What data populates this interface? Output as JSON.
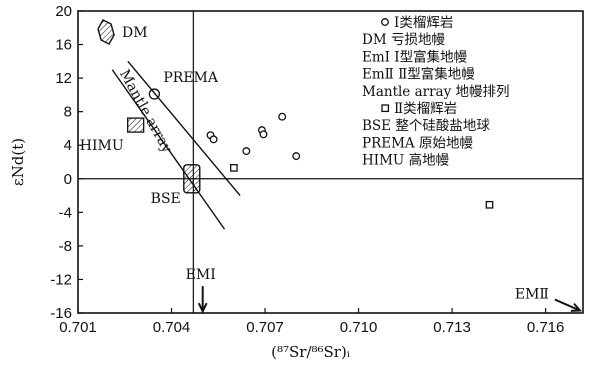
{
  "chart_data": {
    "type": "scatter",
    "xlabel": "(⁸⁷Sr/⁸⁶Sr)ᵢ",
    "ylabel": "εNd(t)",
    "xlim": [
      0.701,
      0.7172
    ],
    "ylim": [
      -16,
      20
    ],
    "x_ticks": [
      0.701,
      0.704,
      0.707,
      0.71,
      0.713,
      0.716
    ],
    "x_tick_labels": [
      "0.701",
      "0.704",
      "0.707",
      "0.710",
      "0.713",
      "0.716"
    ],
    "y_ticks": [
      -16,
      -12,
      -8,
      -4,
      0,
      4,
      8,
      12,
      16,
      20
    ],
    "y_tick_labels": [
      "-16",
      "-12",
      "-8",
      "-4",
      "0",
      "4",
      "8",
      "12",
      "16",
      "20"
    ],
    "reference_lines": {
      "x": 0.7047,
      "y": 0
    },
    "series": [
      {
        "name": "Ⅰ类榴辉岩",
        "marker": "circle",
        "points": [
          [
            0.70525,
            5.2
          ],
          [
            0.70535,
            4.7
          ],
          [
            0.7064,
            3.3
          ],
          [
            0.7069,
            5.8
          ],
          [
            0.70695,
            5.3
          ],
          [
            0.70755,
            7.4
          ],
          [
            0.708,
            2.7
          ]
        ]
      },
      {
        "name": "Ⅱ类榴辉岩",
        "marker": "square",
        "points": [
          [
            0.706,
            1.3
          ],
          [
            0.7142,
            -3.1
          ]
        ]
      }
    ],
    "reservoirs": [
      {
        "label": "DM",
        "shape": "hexagon",
        "x": 0.7019,
        "y": 17.5
      },
      {
        "label": "PREMA",
        "shape": "circle",
        "x": 0.70345,
        "y": 10.1
      },
      {
        "label": "HIMU",
        "shape": "square",
        "x": 0.70285,
        "y": 6.4
      },
      {
        "label": "BSE",
        "shape": "rounded-rect",
        "x": 0.70465,
        "y": 0
      }
    ],
    "mantle_array": {
      "label": "Mantle array"
    },
    "arrows": [
      {
        "label": "EMⅠ",
        "from": [
          0.705,
          -12.8
        ],
        "to": [
          0.705,
          -15.8
        ]
      },
      {
        "label": "EMⅡ",
        "from": [
          0.7163,
          -14.4
        ],
        "to": [
          0.7171,
          -15.7
        ]
      }
    ],
    "legend": {
      "placement": "top-right",
      "entries": [
        {
          "symbol": "circle",
          "text": "Ⅰ类榴辉岩"
        },
        {
          "symbol": "none",
          "text": "DM 亏损地幔"
        },
        {
          "symbol": "none",
          "text": "EmⅠ Ⅰ型富集地幔"
        },
        {
          "symbol": "none",
          "text": "EmⅡ Ⅱ型富集地幔"
        },
        {
          "symbol": "none",
          "text": "Mantle array 地幔排列"
        },
        {
          "symbol": "square",
          "text": "Ⅱ类榴辉岩"
        },
        {
          "symbol": "none",
          "text": "BSE 整个硅酸盐地球"
        },
        {
          "symbol": "none",
          "text": "PREMA 原始地幔"
        },
        {
          "symbol": "none",
          "text": "HIMU 高地幔"
        }
      ]
    }
  }
}
